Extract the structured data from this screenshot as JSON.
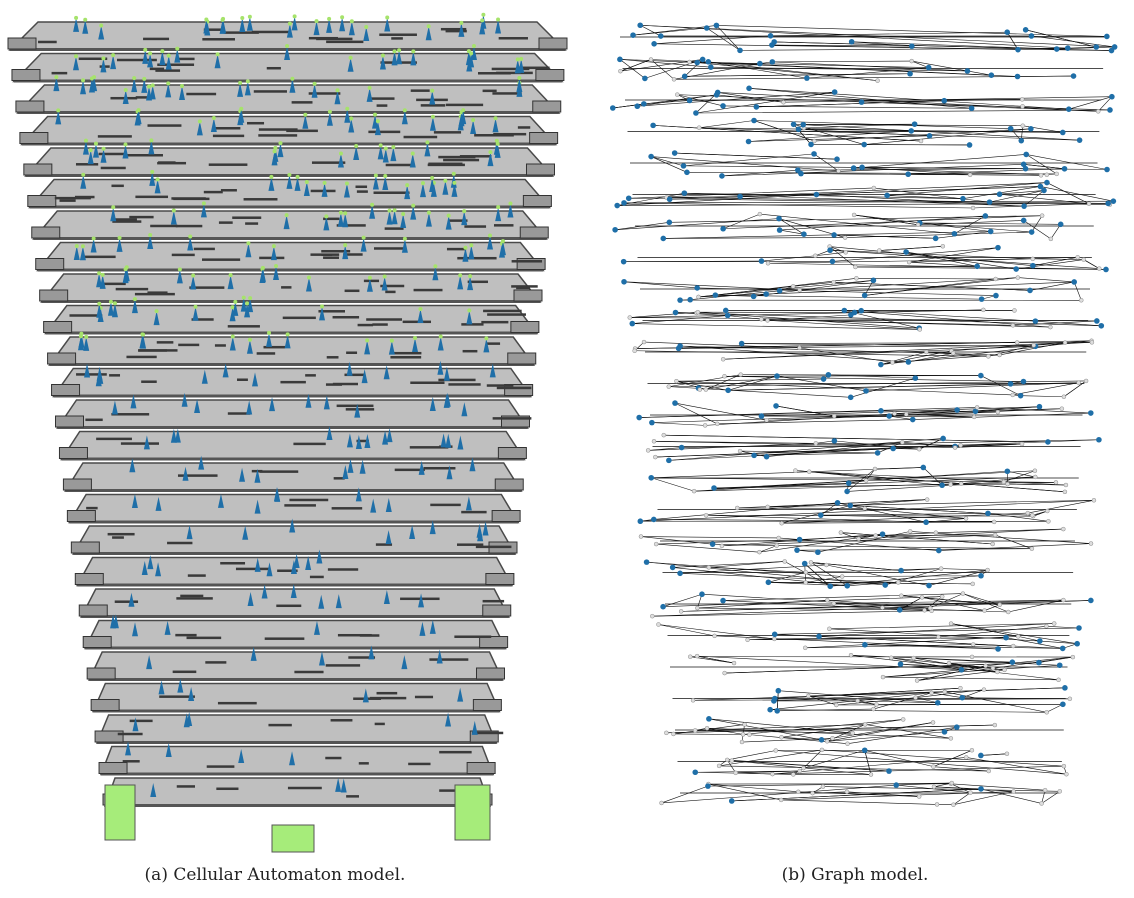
{
  "figure": {
    "panels": [
      {
        "caption": "(a) Cellular Automaton model."
      },
      {
        "caption": "(b) Graph model."
      }
    ]
  }
}
